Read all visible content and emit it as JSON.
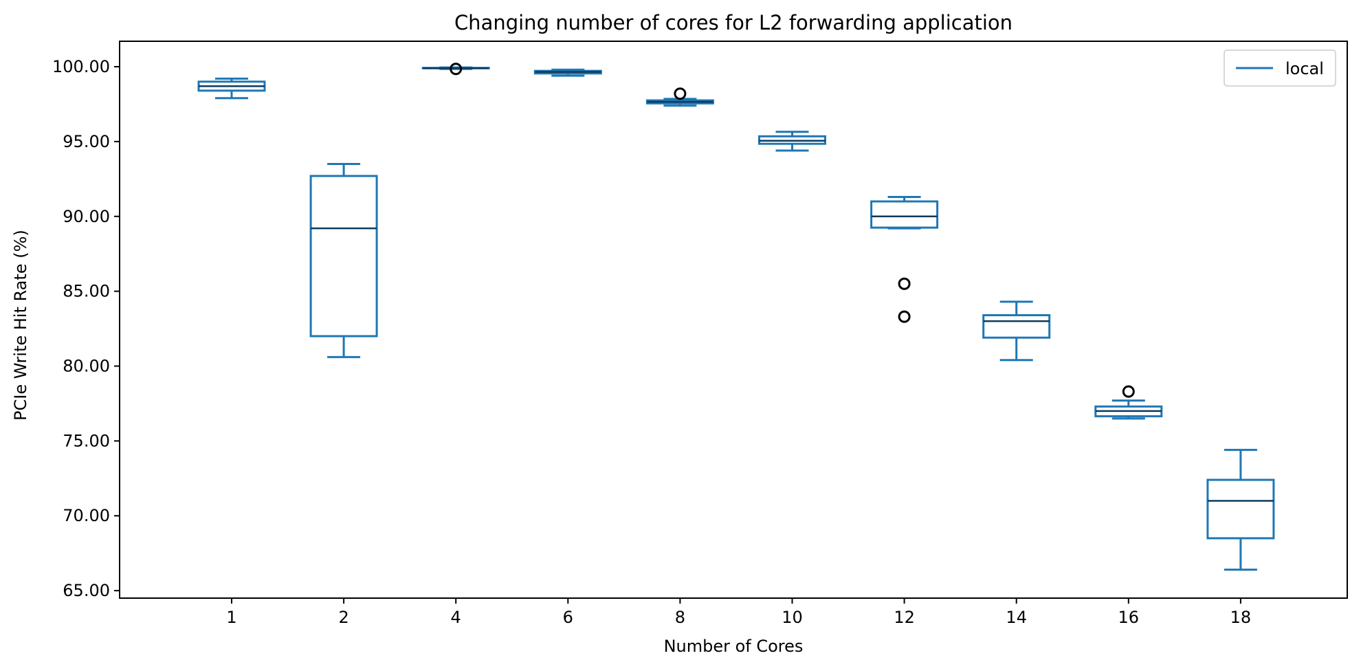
{
  "chart_data": {
    "type": "box",
    "title": "Changing number of cores for L2 forwarding application",
    "xlabel": "Number of Cores",
    "ylabel": "PCIe Write Hit Rate (%)",
    "ylim": [
      64.5,
      101.7
    ],
    "yticks": [
      "65.00",
      "70.00",
      "75.00",
      "80.00",
      "85.00",
      "90.00",
      "95.00",
      "100.00"
    ],
    "grid": false,
    "legend": {
      "position": "top-right",
      "entries": [
        {
          "label": "local",
          "color": "#1f77b4"
        }
      ]
    },
    "colors": {
      "box": "#1f77b4",
      "median": "#0b3a5c",
      "flier": "#000000"
    },
    "categories": [
      "1",
      "2",
      "4",
      "6",
      "8",
      "10",
      "12",
      "14",
      "16",
      "18"
    ],
    "boxes": [
      {
        "category": "1",
        "whislo": 97.9,
        "q1": 98.4,
        "med": 98.7,
        "q3": 99.0,
        "whishi": 99.2,
        "fliers": []
      },
      {
        "category": "2",
        "whislo": 80.6,
        "q1": 82.0,
        "med": 89.2,
        "q3": 92.7,
        "whishi": 93.5,
        "fliers": []
      },
      {
        "category": "4",
        "whislo": 99.85,
        "q1": 99.9,
        "med": 99.9,
        "q3": 99.92,
        "whishi": 99.95,
        "fliers": [
          99.85
        ]
      },
      {
        "category": "6",
        "whislo": 99.4,
        "q1": 99.55,
        "med": 99.65,
        "q3": 99.72,
        "whishi": 99.8,
        "fliers": []
      },
      {
        "category": "8",
        "whislo": 97.4,
        "q1": 97.55,
        "med": 97.65,
        "q3": 97.75,
        "whishi": 97.85,
        "fliers": [
          98.2
        ]
      },
      {
        "category": "10",
        "whislo": 94.4,
        "q1": 94.85,
        "med": 95.05,
        "q3": 95.35,
        "whishi": 95.65,
        "fliers": []
      },
      {
        "category": "12",
        "whislo": 89.2,
        "q1": 89.25,
        "med": 90.0,
        "q3": 91.0,
        "whishi": 91.3,
        "fliers": [
          85.5,
          83.3
        ]
      },
      {
        "category": "14",
        "whislo": 80.4,
        "q1": 81.9,
        "med": 83.0,
        "q3": 83.4,
        "whishi": 84.3,
        "fliers": []
      },
      {
        "category": "16",
        "whislo": 76.5,
        "q1": 76.65,
        "med": 77.0,
        "q3": 77.3,
        "whishi": 77.7,
        "fliers": [
          78.3
        ]
      },
      {
        "category": "18",
        "whislo": 66.4,
        "q1": 68.5,
        "med": 71.0,
        "q3": 72.4,
        "whishi": 74.4,
        "fliers": []
      }
    ]
  }
}
